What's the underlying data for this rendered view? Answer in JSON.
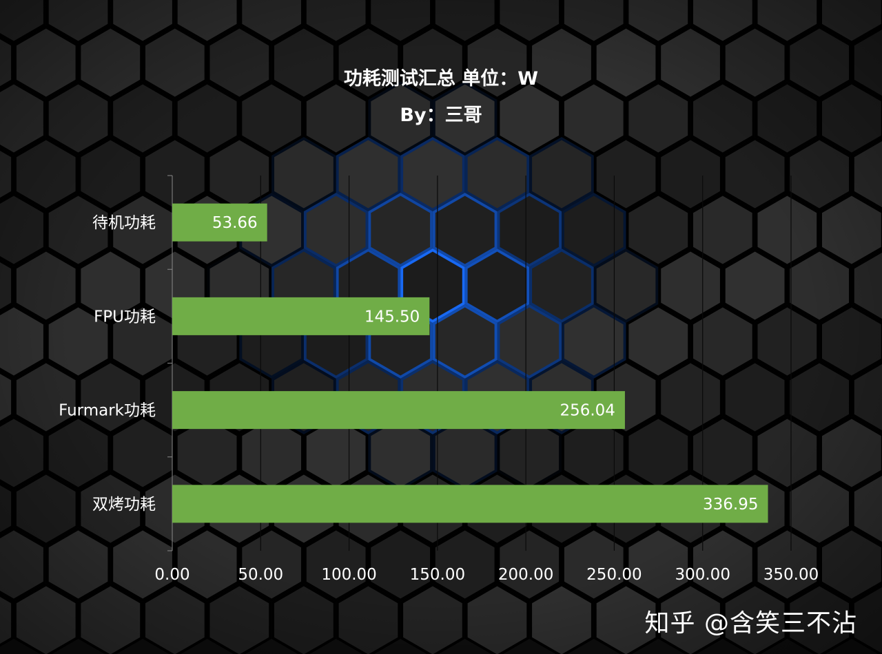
{
  "chart_data": {
    "type": "bar",
    "orientation": "horizontal",
    "title": "功耗测试汇总 单位：W",
    "subtitle": "By：三哥",
    "categories": [
      "待机功耗",
      "FPU功耗",
      "Furmark功耗",
      "双烤功耗"
    ],
    "values": [
      53.66,
      145.5,
      256.04,
      336.95
    ],
    "data_labels": [
      "53.66",
      "145.50",
      "256.04",
      "336.95"
    ],
    "xlim": [
      0,
      350
    ],
    "x_ticks": [
      0,
      50,
      100,
      150,
      200,
      250,
      300,
      350
    ],
    "x_tick_labels": [
      "0.00",
      "50.00",
      "100.00",
      "150.00",
      "200.00",
      "250.00",
      "300.00",
      "350.00"
    ],
    "grid": true,
    "legend": "none",
    "bar_color": "#70ad47",
    "label_color": "#ffffff"
  },
  "watermark": "知乎 @含笑三不沾"
}
